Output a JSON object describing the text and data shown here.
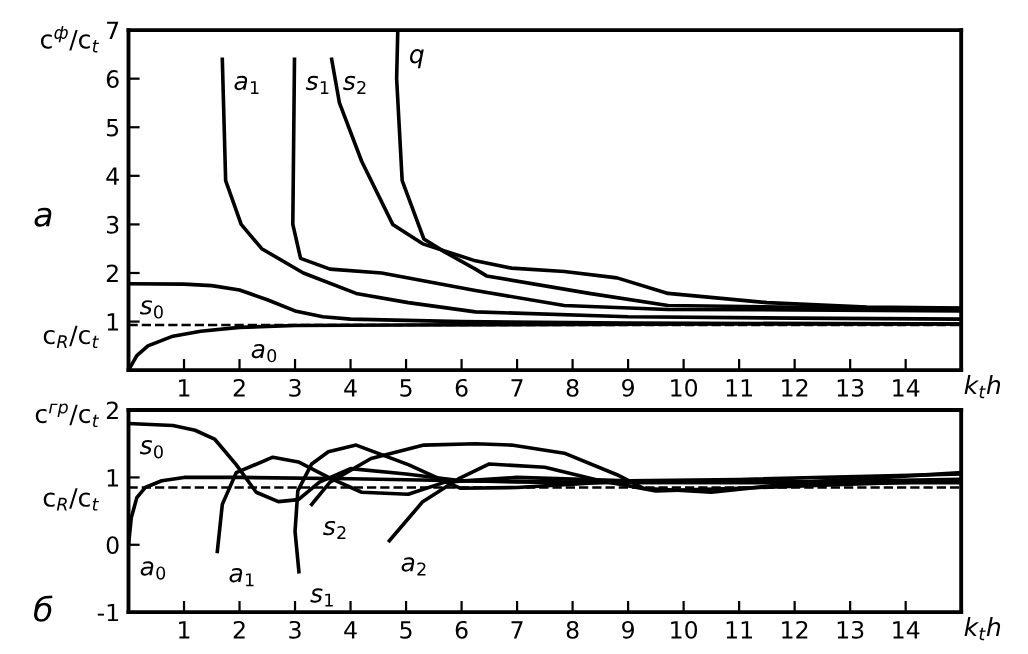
{
  "chart_data": [
    {
      "type": "line",
      "xlabel": "k$_{t}$h",
      "ylabel": "c$^{ф}$/c$_{t}$",
      "xlim": [
        0,
        15
      ],
      "xticks": [
        1,
        2,
        3,
        4,
        5,
        6,
        7,
        8,
        9,
        10,
        11,
        12,
        13,
        14
      ],
      "ylim": [
        0,
        7
      ],
      "yticks": [
        1,
        2,
        3,
        4,
        5,
        6,
        7
      ],
      "annotations": [
        "а"
      ],
      "ref_lines": [
        {
          "axis": "y",
          "value": 0.93,
          "label": "c$_{R}$/c$_{t}$",
          "line_style": "dashed",
          "color": "#000000"
        }
      ],
      "series": [
        {
          "name": "a$_{0}$",
          "color": "#000000",
          "x": [
            0,
            0.15,
            0.35,
            0.8,
            1.3,
            2,
            3,
            5,
            8,
            11,
            15
          ],
          "values": [
            0,
            0.3,
            0.5,
            0.7,
            0.8,
            0.88,
            0.92,
            0.93,
            0.94,
            0.95,
            0.95
          ]
        },
        {
          "name": "s$_{0}$",
          "color": "#000000",
          "x": [
            0,
            1,
            1.5,
            2,
            2.5,
            3,
            3.5,
            4,
            6,
            9,
            15
          ],
          "values": [
            1.78,
            1.77,
            1.74,
            1.65,
            1.45,
            1.22,
            1.1,
            1.05,
            1.0,
            0.97,
            0.95
          ]
        },
        {
          "name": "a$_{1}$",
          "color": "#000000",
          "x": [
            1.69,
            1.75,
            2.03,
            2.4,
            3.15,
            4.1,
            5.04,
            6.25,
            9,
            12,
            15
          ],
          "values": [
            6.4,
            3.9,
            3.0,
            2.5,
            2.0,
            1.58,
            1.39,
            1.2,
            1.1,
            1.07,
            1.05
          ]
        },
        {
          "name": "s$_{1}$",
          "color": "#000000",
          "x": [
            2.99,
            2.96,
            3.1,
            3.63,
            4.56,
            5.5,
            6.25,
            7.85,
            9.72,
            12,
            15
          ],
          "values": [
            6.4,
            3.0,
            2.3,
            2.08,
            2.0,
            1.8,
            1.64,
            1.33,
            1.25,
            1.24,
            1.22
          ]
        },
        {
          "name": "s$_{2}$",
          "color": "#000000",
          "x": [
            3.66,
            3.8,
            4.2,
            4.76,
            5.3,
            6.25,
            6.9,
            7.85,
            8.8,
            9.72,
            11.5,
            13.3,
            15
          ],
          "values": [
            6.4,
            5.5,
            4.3,
            3.0,
            2.6,
            2.25,
            2.1,
            2.03,
            1.9,
            1.58,
            1.39,
            1.3,
            1.28
          ]
        },
        {
          "name": "q",
          "color": "#000000",
          "x": [
            4.85,
            4.83,
            4.93,
            5.32,
            5.7,
            6.25,
            6.45,
            8.3,
            9.72,
            13.3,
            15
          ],
          "values": [
            6.95,
            6.0,
            3.9,
            2.7,
            2.43,
            2.08,
            1.94,
            1.58,
            1.33,
            1.28,
            1.27
          ]
        }
      ]
    },
    {
      "type": "line",
      "xlabel": "k$_{t}$h",
      "ylabel": "c$^{гр}$/c$_{t}$",
      "xlim": [
        0,
        15
      ],
      "xticks": [
        1,
        2,
        3,
        4,
        5,
        6,
        7,
        8,
        9,
        10,
        11,
        12,
        13,
        14
      ],
      "ylim": [
        -1,
        2
      ],
      "yticks": [
        -1,
        0,
        1,
        2
      ],
      "annotations": [
        "б"
      ],
      "ref_lines": [
        {
          "axis": "y",
          "value": 0.85,
          "label": "c$_{R}$/c$_{t}$",
          "line_style": "dashed",
          "color": "#000000"
        }
      ],
      "series": [
        {
          "name": "a$_{0}$",
          "color": "#000000",
          "x": [
            0,
            0.05,
            0.15,
            0.3,
            0.6,
            1,
            2,
            4,
            6,
            8,
            11,
            15
          ],
          "values": [
            0,
            0.4,
            0.7,
            0.85,
            0.95,
            1.0,
            1.0,
            0.98,
            0.95,
            0.93,
            0.92,
            0.92
          ]
        },
        {
          "name": "s$_{0}$",
          "color": "#000000",
          "x": [
            0,
            0.8,
            1.2,
            1.55,
            1.94,
            2.3,
            2.7,
            3.06,
            3.44,
            4,
            5,
            6,
            8,
            11,
            15
          ],
          "values": [
            1.8,
            1.77,
            1.7,
            1.57,
            1.19,
            0.78,
            0.64,
            0.67,
            0.93,
            1.13,
            1.05,
            0.95,
            0.92,
            0.93,
            0.95
          ]
        },
        {
          "name": "a$_{1}$",
          "color": "#000000",
          "x": [
            1.6,
            1.69,
            1.94,
            2.6,
            3.06,
            3.63,
            4.2,
            5.04,
            5.7,
            7,
            9,
            12,
            15
          ],
          "values": [
            -0.1,
            0.6,
            1.07,
            1.3,
            1.23,
            0.99,
            0.78,
            0.75,
            0.93,
            1.0,
            0.95,
            0.93,
            0.97
          ]
        },
        {
          "name": "s$_{1}$",
          "color": "#000000",
          "x": [
            3.07,
            3.0,
            3.05,
            3.3,
            3.6,
            4.1,
            5.04,
            5.97,
            7,
            8,
            9,
            11,
            15
          ],
          "values": [
            -0.4,
            0.2,
            0.8,
            1.2,
            1.38,
            1.48,
            1.19,
            0.84,
            0.85,
            0.9,
            0.95,
            0.97,
            1.05
          ]
        },
        {
          "name": "s$_{2}$",
          "color": "#000000",
          "x": [
            3.3,
            3.63,
            4.37,
            5.32,
            6.25,
            6.9,
            7.85,
            8.8,
            9.27,
            10.5,
            12.2,
            15
          ],
          "values": [
            0.6,
            0.93,
            1.28,
            1.48,
            1.5,
            1.48,
            1.36,
            1.04,
            0.84,
            0.78,
            0.93,
            1.07
          ]
        },
        {
          "name": "a$_{2}$",
          "color": "#000000",
          "x": [
            4.7,
            5.3,
            5.97,
            6.5,
            7.5,
            8.5,
            9.5,
            11,
            13,
            15
          ],
          "values": [
            0.06,
            0.64,
            0.99,
            1.2,
            1.15,
            0.95,
            0.8,
            0.84,
            0.9,
            0.95
          ]
        }
      ]
    }
  ]
}
